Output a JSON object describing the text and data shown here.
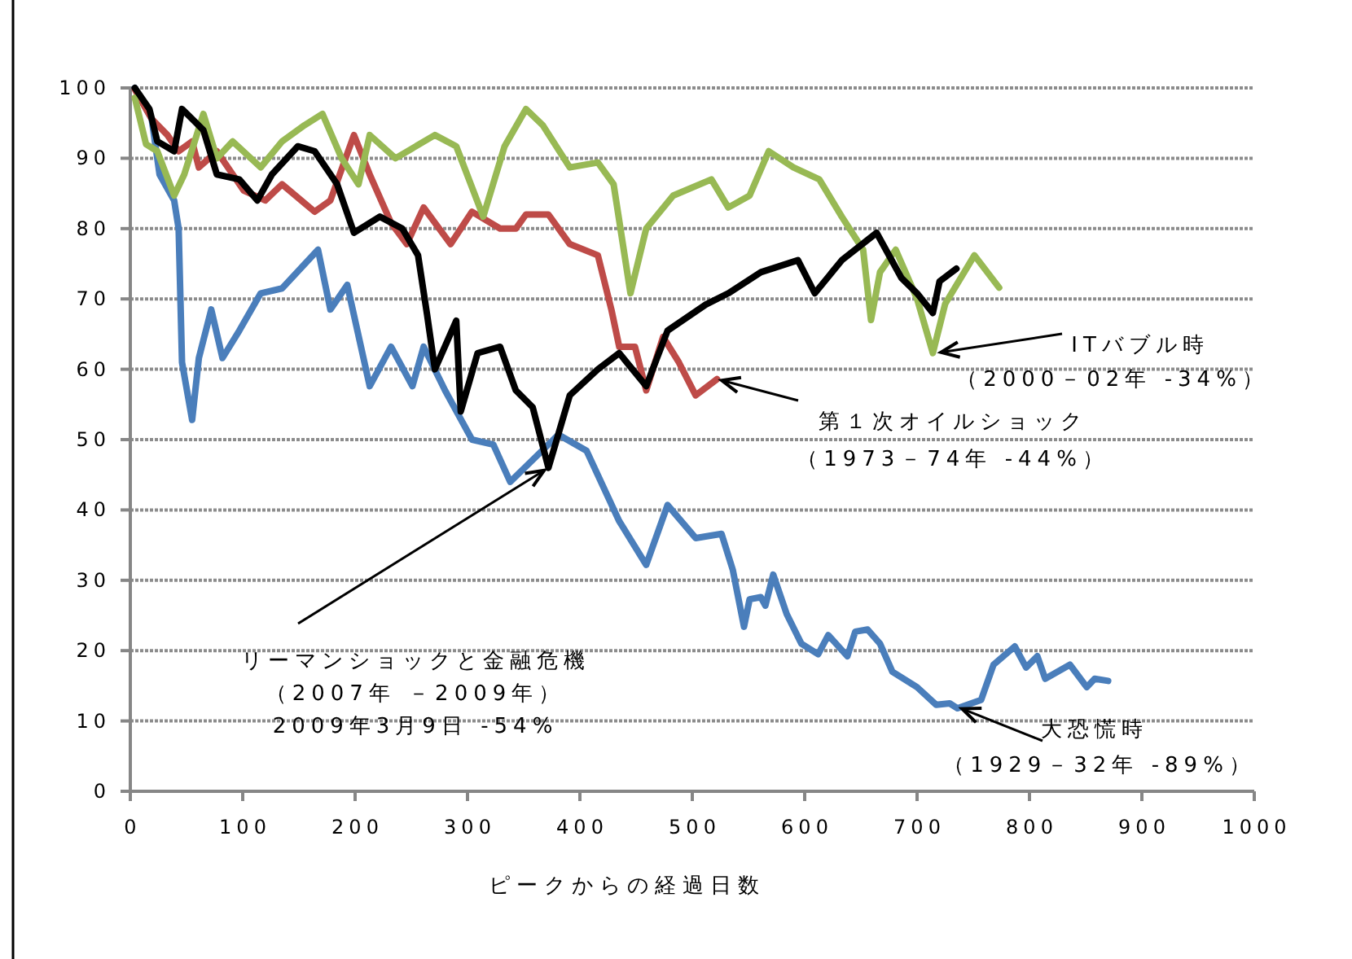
{
  "chart_data": {
    "type": "line",
    "xlabel": "ピークからの経過日数",
    "xlim": [
      0,
      1000
    ],
    "xticks": [
      0,
      100,
      200,
      300,
      400,
      500,
      600,
      700,
      800,
      900,
      1000
    ],
    "ylim": [
      0,
      100
    ],
    "yticks": [
      0,
      10,
      20,
      30,
      40,
      50,
      60,
      70,
      80,
      90,
      100
    ],
    "grid": "y",
    "marker": "none",
    "line_style": "solid",
    "series": [
      {
        "color": "#4a7ebb",
        "x": [
          4,
          19,
          26,
          39,
          43,
          46,
          55,
          61,
          72,
          82,
          97,
          116,
          135,
          167,
          178,
          193,
          213,
          232,
          251,
          261,
          280,
          304,
          323,
          338,
          381,
          406,
          435,
          459,
          478,
          503,
          526,
          536,
          546,
          551,
          561,
          565,
          572,
          584,
          597,
          612,
          621,
          638,
          645,
          656,
          667,
          678,
          700,
          717,
          729,
          736,
          757,
          768,
          787,
          797,
          807,
          814,
          836,
          851,
          858,
          870
        ],
        "values": [
          100,
          95.6,
          87.7,
          84,
          80,
          61,
          52.8,
          61.6,
          68.5,
          61.6,
          65.5,
          70.8,
          71.5,
          77,
          68.5,
          72,
          57.6,
          63.2,
          57.6,
          63.2,
          57,
          50,
          49.3,
          44,
          50.7,
          48.4,
          38.4,
          32.2,
          40.7,
          36,
          36.6,
          31.5,
          23.4,
          27.3,
          27.6,
          26.4,
          30.8,
          25.2,
          21,
          19.5,
          22.2,
          19.2,
          22.7,
          23,
          21,
          17,
          14.8,
          12.3,
          12.5,
          11.8,
          13,
          18,
          20.6,
          17.6,
          19.2,
          16,
          18,
          14.8,
          16,
          15.7
        ]
      },
      {
        "color": "#be4b48",
        "x": [
          4,
          19,
          33,
          43,
          55,
          61,
          77,
          101,
          120,
          135,
          164,
          178,
          199,
          213,
          232,
          246,
          261,
          285,
          304,
          329,
          343,
          352,
          372,
          391,
          416,
          428,
          435,
          449,
          459,
          474,
          488,
          503,
          522
        ],
        "values": [
          99.8,
          95.6,
          93.3,
          91,
          92.4,
          88.7,
          91,
          85.4,
          84,
          86.3,
          82.4,
          84,
          93.3,
          87.7,
          80.8,
          77.8,
          83,
          77.8,
          82.4,
          80,
          80,
          82,
          82,
          77.8,
          76.2,
          68.5,
          63.2,
          63.2,
          57,
          64.6,
          61,
          56.3,
          58.6
        ]
      },
      {
        "color": "#98b954",
        "x": [
          4,
          14,
          24,
          39,
          48,
          65,
          77,
          91,
          116,
          135,
          155,
          171,
          188,
          203,
          213,
          236,
          271,
          290,
          314,
          333,
          352,
          367,
          391,
          416,
          430,
          445,
          459,
          483,
          517,
          532,
          551,
          568,
          590,
          613,
          633,
          652,
          659,
          667,
          681,
          700,
          714,
          725,
          751,
          773
        ],
        "values": [
          98.6,
          92,
          91,
          84.7,
          87.7,
          96.3,
          90,
          92.4,
          88.7,
          92.4,
          94.7,
          96.3,
          90,
          86.3,
          93.3,
          90,
          93.3,
          91.7,
          81.7,
          91.7,
          97,
          94.7,
          88.7,
          89.4,
          86.3,
          70.8,
          80,
          84.7,
          87,
          83,
          84.7,
          91,
          88.7,
          87,
          81.7,
          77,
          67,
          73.8,
          77,
          70,
          62.3,
          69.3,
          76.2,
          71.6
        ]
      },
      {
        "color": "#000000",
        "x": [
          4,
          17,
          24,
          39,
          46,
          55,
          65,
          77,
          97,
          113,
          126,
          149,
          164,
          184,
          199,
          222,
          242,
          256,
          264,
          271,
          290,
          294,
          309,
          329,
          343,
          358,
          372,
          391,
          416,
          435,
          459,
          478,
          512,
          532,
          561,
          594,
          609,
          633,
          664,
          686,
          700,
          714,
          720,
          735
        ],
        "values": [
          100,
          97,
          92.4,
          91,
          97,
          95.6,
          94,
          87.7,
          87,
          84,
          87.7,
          91.7,
          91,
          86.3,
          79.4,
          81.7,
          80,
          76.2,
          67.8,
          60,
          66.9,
          54,
          62.3,
          63.2,
          57,
          54.6,
          46,
          56.3,
          60,
          62.3,
          57.6,
          65.5,
          69.2,
          70.8,
          73.8,
          75.5,
          70.8,
          75.5,
          79.4,
          73,
          70.8,
          68,
          72.5,
          74.3
        ]
      }
    ],
    "annotations": [
      {
        "text": "ITバブル時",
        "x": 717,
        "y": 62.3
      },
      "（2000－02年 -34%）",
      {
        "text": "第１次オイルショック",
        "x": 522,
        "y": 58.6
      },
      "（1973－74年 -44%）",
      {
        "text": "リーマンショックと金融危機",
        "x": 372,
        "y": 46
      },
      "（2007年 －2009年）",
      "2009年3月9日 -54%",
      {
        "text": "大恐慌時",
        "x": 736,
        "y": 12
      },
      "（1929－32年 -89%）"
    ]
  }
}
